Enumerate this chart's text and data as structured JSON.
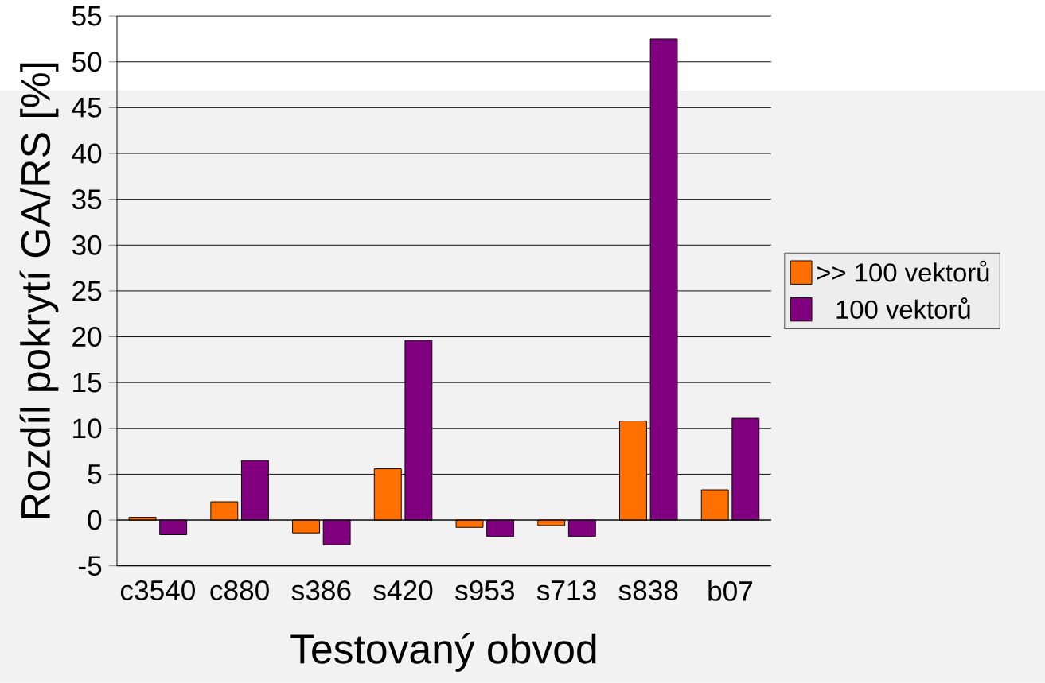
{
  "chart_data": {
    "type": "bar",
    "xlabel": "Testovaný obvod",
    "ylabel": "Rozdíl pokrytí GA/RS [%]",
    "categories": [
      "c3540",
      "c880",
      "s386",
      "s420",
      "s953",
      "s713",
      "s838",
      "b07"
    ],
    "series": [
      {
        "name": ">> 100 vektorů",
        "color": "#ff7000",
        "values": [
          0.3,
          2.0,
          -1.4,
          5.6,
          -0.8,
          -0.6,
          10.8,
          3.3
        ]
      },
      {
        "name": "100 vektorů",
        "color": "#800080",
        "values": [
          -1.6,
          6.5,
          -2.7,
          19.6,
          -1.8,
          -1.8,
          52.5,
          11.1
        ]
      }
    ],
    "ylim": [
      -5,
      55
    ],
    "yticks": [
      -5,
      0,
      5,
      10,
      15,
      20,
      25,
      30,
      35,
      40,
      45,
      50,
      55
    ],
    "grid": "y",
    "legend": "right"
  }
}
